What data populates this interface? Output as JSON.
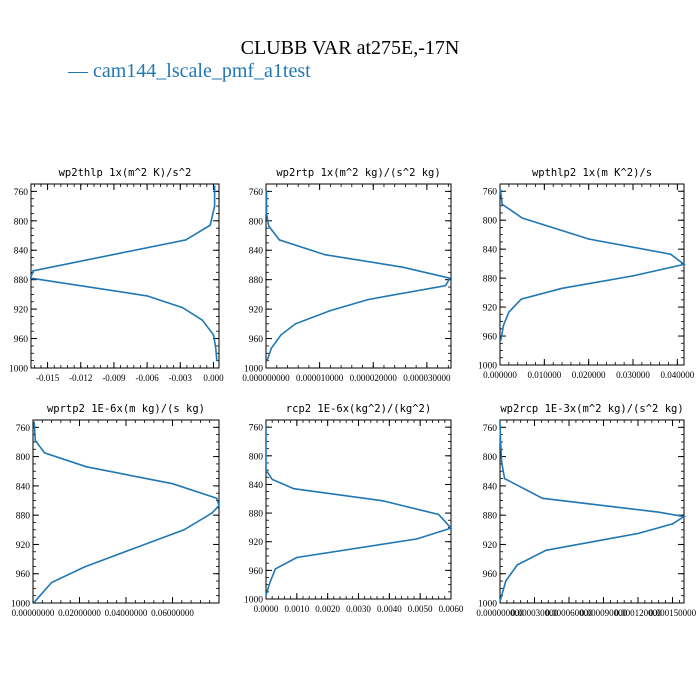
{
  "page": {
    "title": "CLUBB VAR at275E,-17N",
    "legend": "— cam144_lscale_pmf_a1test",
    "line_color": "#1f77b4"
  },
  "chart_data": [
    {
      "type": "line",
      "title": "wp2thlp  1x(m^2 K)/s^2",
      "xlim": [
        -0.0165,
        0.0005
      ],
      "ylim": [
        1000,
        750
      ],
      "xticks": [
        -0.015,
        -0.012,
        -0.009,
        -0.006,
        -0.003,
        0.0
      ],
      "xticklabels": [
        "-0.015",
        "-0.012",
        "-0.009",
        "-0.006",
        "-0.003",
        "0.000"
      ],
      "yticks": [
        760,
        800,
        840,
        880,
        920,
        960,
        1000
      ],
      "yticklabels": [
        "760",
        "800",
        "840",
        "880",
        "920",
        "960",
        "1000"
      ],
      "x": [
        0.0001,
        0.0001,
        -0.0003,
        -0.0025,
        -0.0163,
        -0.0165,
        -0.0165,
        -0.006,
        -0.0028,
        -0.001,
        0.0,
        0.0002,
        0.0003
      ],
      "y": [
        753,
        780,
        806,
        826,
        868,
        876,
        878,
        902,
        918,
        935,
        955,
        972,
        990
      ]
    },
    {
      "type": "line",
      "title": "wp2rtp  1x(m^2 kg)/(s^2 kg)",
      "xlim": [
        0.0,
        3.45e-05
      ],
      "ylim": [
        1000,
        750
      ],
      "xticks": [
        0.0,
        1e-05,
        2e-05,
        3e-05
      ],
      "xticklabels": [
        "0.000000000",
        "0.000010000",
        "0.000020000",
        "0.000030000"
      ],
      "yticks": [
        760,
        800,
        840,
        880,
        920,
        960,
        1000
      ],
      "yticklabels": [
        "760",
        "800",
        "840",
        "880",
        "920",
        "960",
        "1000"
      ],
      "x": [
        1e-07,
        1e-07,
        5e-07,
        2.5e-06,
        1.1e-05,
        2.55e-05,
        3.43e-05,
        3.35e-05,
        1.9e-05,
        1.2e-05,
        5.5e-06,
        2.8e-06,
        1e-06,
        2e-07
      ],
      "y": [
        760,
        790,
        807,
        826,
        846,
        863,
        878,
        888,
        907,
        922,
        940,
        955,
        973,
        990
      ]
    },
    {
      "type": "line",
      "title": "wpthlp2  1x(m K^2)/s",
      "xlim": [
        0.0,
        0.0415
      ],
      "ylim": [
        1000,
        750
      ],
      "xticks": [
        0.0,
        0.01,
        0.02,
        0.03,
        0.04
      ],
      "xticklabels": [
        "0.000000",
        "0.010000",
        "0.020000",
        "0.030000",
        "0.040000"
      ],
      "yticks": [
        760,
        800,
        840,
        880,
        920,
        960,
        1000
      ],
      "yticklabels": [
        "760",
        "800",
        "840",
        "880",
        "920",
        "960",
        "1000"
      ],
      "x": [
        0.0001,
        0.0005,
        0.005,
        0.02,
        0.0385,
        0.0415,
        0.03,
        0.014,
        0.0048,
        0.002,
        0.0008,
        0.0002
      ],
      "y": [
        758,
        778,
        797,
        826,
        847,
        861,
        877,
        894,
        909,
        927,
        945,
        965
      ]
    },
    {
      "type": "line",
      "title": "wprtp2  1E-6x(m kg)/(s kg)",
      "xlim": [
        0.0,
        0.08
      ],
      "ylim": [
        1000,
        750
      ],
      "xticks": [
        0.0,
        0.02,
        0.04,
        0.06
      ],
      "xticklabels": [
        "0.00000000",
        "0.02000000",
        "0.04000000",
        "0.06000000"
      ],
      "yticks": [
        760,
        800,
        840,
        880,
        920,
        960,
        1000
      ],
      "yticklabels": [
        "760",
        "800",
        "840",
        "880",
        "920",
        "960",
        "1000"
      ],
      "x": [
        0.0005,
        0.001,
        0.005,
        0.023,
        0.06,
        0.079,
        0.08,
        0.077,
        0.065,
        0.042,
        0.022,
        0.008,
        0.003,
        0.0005
      ],
      "y": [
        753,
        778,
        795,
        814,
        837,
        857,
        867,
        877,
        900,
        927,
        951,
        972,
        990,
        999
      ]
    },
    {
      "type": "line",
      "title": "rcp2  1E-6x(kg^2)/(kg^2)",
      "xlim": [
        0.0,
        0.006
      ],
      "ylim": [
        1000,
        750
      ],
      "xticks": [
        0.0,
        0.001,
        0.002,
        0.003,
        0.004,
        0.005,
        0.006
      ],
      "xticklabels": [
        "0.0000",
        "0.0010",
        "0.0020",
        "0.0030",
        "0.0040",
        "0.0050",
        "0.0060"
      ],
      "yticks": [
        760,
        800,
        840,
        880,
        920,
        960,
        1000
      ],
      "yticklabels": [
        "760",
        "800",
        "840",
        "880",
        "920",
        "960",
        "1000"
      ],
      "x": [
        0.0,
        0.0,
        0.0002,
        0.0009,
        0.0038,
        0.0056,
        0.006,
        0.0049,
        0.001,
        0.0003,
        0.0001,
        0.0
      ],
      "y": [
        760,
        820,
        833,
        846,
        863,
        882,
        901,
        916,
        942,
        958,
        980,
        995
      ]
    },
    {
      "type": "line",
      "title": "wp2rcp  1E-3x(m^2 kg)/(s^2 kg)",
      "xlim": [
        0.0,
        0.00016
      ],
      "ylim": [
        1000,
        750
      ],
      "xticks": [
        0.0,
        3e-05,
        6e-05,
        9e-05,
        0.00012,
        0.00015
      ],
      "xticklabels": [
        "0.000000000",
        "0.000030000",
        "0.000060000",
        "0.000090000",
        "0.000120000",
        "0.000150000"
      ],
      "yticks": [
        760,
        800,
        840,
        880,
        920,
        960,
        1000
      ],
      "yticklabels": [
        "760",
        "800",
        "840",
        "880",
        "920",
        "960",
        "1000"
      ],
      "x": [
        0.0,
        5e-07,
        1.5e-06,
        4e-06,
        3.7e-05,
        0.000138,
        0.00016,
        0.00015,
        0.00012,
        4e-05,
        1.5e-05,
        5e-06,
        0.0
      ],
      "y": [
        753,
        780,
        808,
        830,
        857,
        876,
        882,
        892,
        905,
        928,
        948,
        970,
        998
      ]
    }
  ]
}
